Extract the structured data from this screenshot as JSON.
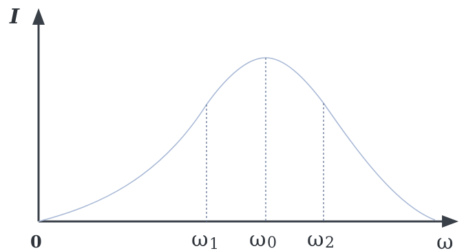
{
  "axes": {
    "y_label": "I",
    "x_label": "ω",
    "origin_label": "0"
  },
  "markers": [
    {
      "base": "ω",
      "subscript": "1"
    },
    {
      "base": "ω",
      "subscript": "0"
    },
    {
      "base": "ω",
      "subscript": "2"
    }
  ],
  "colors": {
    "axis": "#3a4048",
    "curve": "#a9b9d6",
    "guide": "#6f7f9c"
  }
}
